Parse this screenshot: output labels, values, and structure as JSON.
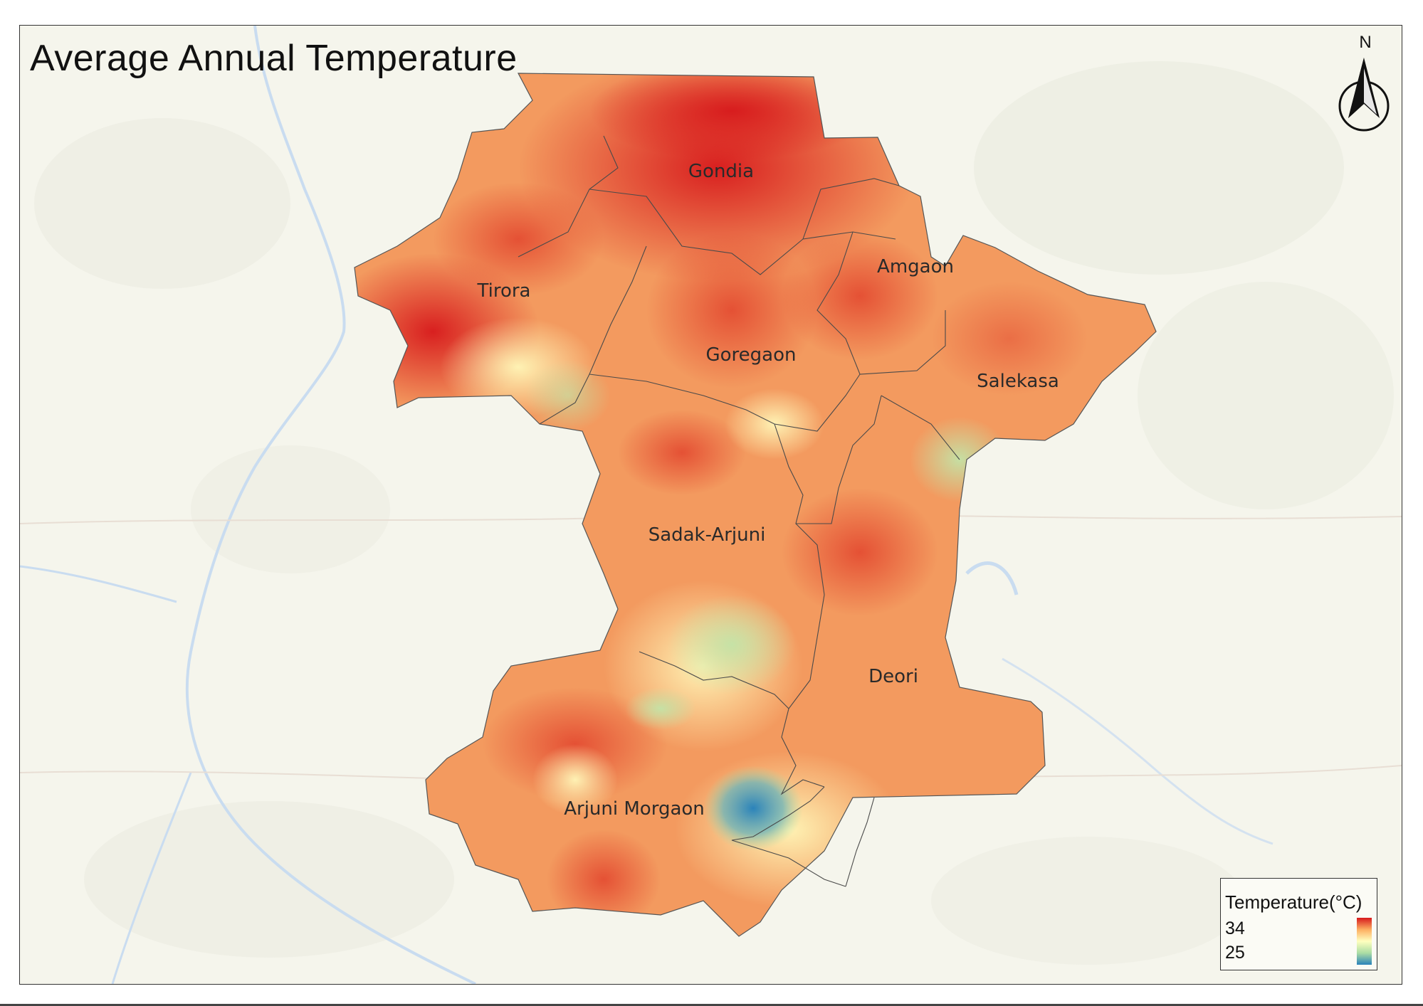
{
  "map": {
    "title": "Average Annual Temperature",
    "north_arrow": {
      "letter": "N"
    },
    "regions": [
      {
        "name": "Gondia"
      },
      {
        "name": "Tirora"
      },
      {
        "name": "Amgaon"
      },
      {
        "name": "Goregaon"
      },
      {
        "name": "Salekasa"
      },
      {
        "name": "Sadak-Arjuni"
      },
      {
        "name": "Deori"
      },
      {
        "name": "Arjuni Morgaon"
      }
    ],
    "legend": {
      "title": "Temperature(°C)",
      "max": "34",
      "min": "25",
      "ramp_colors": [
        "#d7191c",
        "#fdae61",
        "#ffffbf",
        "#abdda4",
        "#2b83ba"
      ]
    },
    "colors": {
      "basemap": "#f5f5ec",
      "water": "#c9dcf0",
      "boundary": "#555555"
    }
  }
}
